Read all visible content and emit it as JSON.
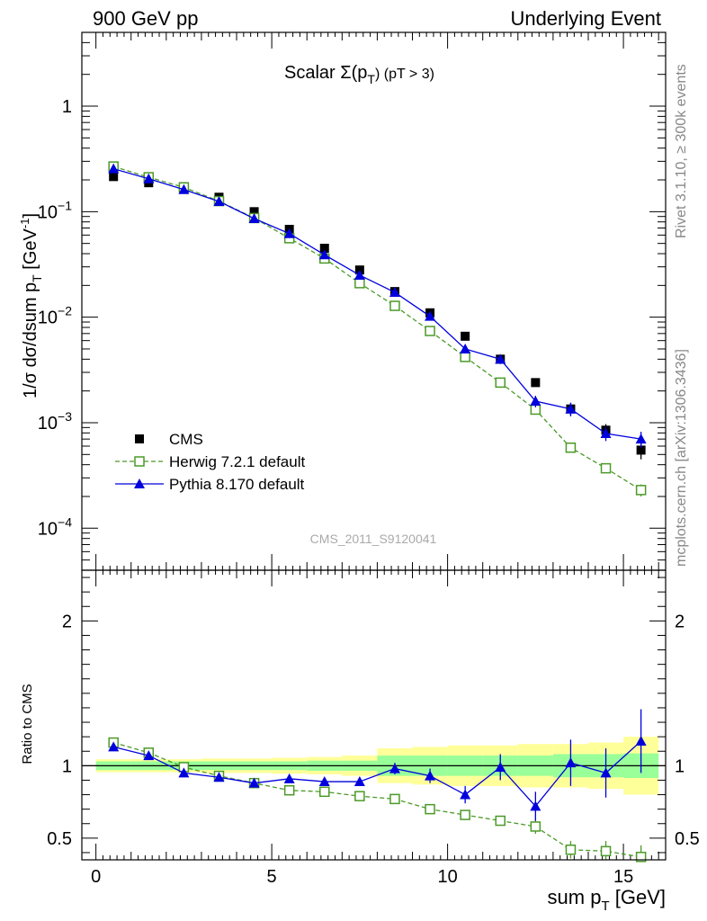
{
  "header": {
    "left_title": "900 GeV pp",
    "right_title": "Underlying Event"
  },
  "side_labels": {
    "rivet": "Rivet 3.1.10, ≥ 300k events",
    "mcplots": "mcplots.cern.ch [arXiv:1306.3436]"
  },
  "chart_data": [
    {
      "type": "scatter",
      "panel": "main",
      "title_main": "Scalar Σ(p",
      "title_sub": "T",
      "title_tail": ") (pT >  3)",
      "analysis_label": "CMS_2011_S9120041",
      "ylabel_main": "1/σ dσ/dsum p",
      "ylabel_sub": "T",
      "ylabel_unit": " [GeV",
      "ylabel_sup": "-1",
      "ylabel_close": "]",
      "yscale": "log",
      "ylim": [
        4e-05,
        5
      ],
      "xlim": [
        -0.4,
        16.2
      ],
      "y_tick_labels": [
        {
          "value": 1,
          "base": "1",
          "exp": ""
        },
        {
          "value": 0.1,
          "base": "10",
          "exp": "−1"
        },
        {
          "value": 0.01,
          "base": "10",
          "exp": "−2"
        },
        {
          "value": 0.001,
          "base": "10",
          "exp": "−3"
        },
        {
          "value": 0.0001,
          "base": "10",
          "exp": "−4"
        }
      ],
      "legend": {
        "position": "lower-left",
        "entries": [
          {
            "label": "CMS",
            "marker": "filled-square",
            "color": "#000000"
          },
          {
            "label": "Herwig 7.2.1 default",
            "marker": "open-square-dashed",
            "color": "#4b9a28"
          },
          {
            "label": "Pythia 8.170 default",
            "marker": "filled-triangle-solid",
            "color": "#0000dd"
          }
        ]
      },
      "x": [
        0.5,
        1.5,
        2.5,
        3.5,
        4.5,
        5.5,
        6.5,
        7.5,
        8.5,
        9.5,
        10.5,
        11.5,
        12.5,
        13.5,
        14.5,
        15.5
      ],
      "series": [
        {
          "name": "CMS",
          "color": "#000000",
          "values": [
            0.215,
            0.188,
            0.172,
            0.137,
            0.1,
            0.068,
            0.045,
            0.028,
            0.0175,
            0.011,
            0.0066,
            0.004,
            0.0024,
            0.00135,
            0.00085,
            0.00055
          ],
          "errors": [
            0.005,
            0.004,
            0.004,
            0.003,
            0.002,
            0.0015,
            0.0012,
            0.0008,
            0.0006,
            0.0004,
            0.0003,
            0.00025,
            0.0002,
            0.00018,
            0.00012,
            0.0001
          ]
        },
        {
          "name": "Herwig 7.2.1 default",
          "color": "#4b9a28",
          "values": [
            0.268,
            0.212,
            0.17,
            0.126,
            0.087,
            0.056,
            0.036,
            0.021,
            0.0128,
            0.0074,
            0.0042,
            0.0024,
            0.00133,
            0.00058,
            0.00037,
            0.00023
          ],
          "errors": [
            0,
            0,
            0,
            0,
            0,
            0,
            0,
            0,
            0,
            0,
            0,
            0,
            6e-05,
            4e-05,
            3e-05,
            3e-05
          ]
        },
        {
          "name": "Pythia 8.170 default",
          "color": "#0000dd",
          "values": [
            0.255,
            0.205,
            0.162,
            0.125,
            0.086,
            0.062,
            0.039,
            0.025,
            0.0172,
            0.0102,
            0.005,
            0.004,
            0.0016,
            0.00135,
            0.00079,
            0.0007
          ],
          "errors": [
            0,
            0,
            0,
            0,
            0,
            0,
            0,
            0,
            0.0008,
            0.0006,
            0.0004,
            0.0004,
            0.0002,
            0.0002,
            0.00012,
            0.00012
          ]
        }
      ]
    },
    {
      "type": "scatter",
      "panel": "ratio",
      "ylabel": "Ratio to CMS",
      "ylim": [
        0.35,
        2.35
      ],
      "xlim": [
        -0.4,
        16.2
      ],
      "xlabel_main": "sum p",
      "xlabel_sub": "T",
      "xlabel_unit": " [GeV]",
      "x_tick_labels": [
        "0",
        "5",
        "10",
        "15"
      ],
      "x_ticks": [
        0,
        5,
        10,
        15
      ],
      "y_tick_labels": [
        "2",
        "1",
        "0.5"
      ],
      "y_ticks": [
        2,
        1,
        0.5
      ],
      "reference_line": 1,
      "bands": {
        "x_edges": [
          0,
          1,
          2,
          3,
          4,
          5,
          6,
          7,
          8,
          9,
          10,
          11,
          12,
          13,
          14,
          15,
          16
        ],
        "inner_half_width": [
          0.03,
          0.03,
          0.03,
          0.03,
          0.03,
          0.03,
          0.035,
          0.035,
          0.07,
          0.07,
          0.07,
          0.07,
          0.07,
          0.08,
          0.08,
          0.085
        ],
        "outer_half_width": [
          0.045,
          0.045,
          0.045,
          0.05,
          0.05,
          0.055,
          0.06,
          0.07,
          0.12,
          0.13,
          0.14,
          0.14,
          0.15,
          0.15,
          0.16,
          0.2
        ],
        "inner_color": "#99ff99",
        "outer_color": "#ffff99"
      },
      "x": [
        0.5,
        1.5,
        2.5,
        3.5,
        4.5,
        5.5,
        6.5,
        7.5,
        8.5,
        9.5,
        10.5,
        11.5,
        12.5,
        13.5,
        14.5,
        15.5
      ],
      "series": [
        {
          "name": "Herwig 7.2.1 default",
          "color": "#4b9a28",
          "values": [
            1.16,
            1.09,
            0.99,
            0.93,
            0.88,
            0.83,
            0.82,
            0.79,
            0.77,
            0.7,
            0.66,
            0.62,
            0.58,
            0.42,
            0.41,
            0.37
          ],
          "errors": [
            0,
            0,
            0,
            0,
            0,
            0,
            0,
            0,
            0,
            0,
            0,
            0.03,
            0.05,
            0.06,
            0.07,
            0.08
          ]
        },
        {
          "name": "Pythia 8.170 default",
          "color": "#0000dd",
          "values": [
            1.13,
            1.07,
            0.95,
            0.92,
            0.88,
            0.91,
            0.89,
            0.89,
            0.98,
            0.93,
            0.8,
            0.99,
            0.72,
            1.02,
            0.95,
            1.17
          ],
          "errors": [
            0,
            0,
            0,
            0,
            0,
            0,
            0,
            0.03,
            0.04,
            0.05,
            0.06,
            0.09,
            0.1,
            0.16,
            0.17,
            0.22
          ]
        }
      ]
    }
  ]
}
